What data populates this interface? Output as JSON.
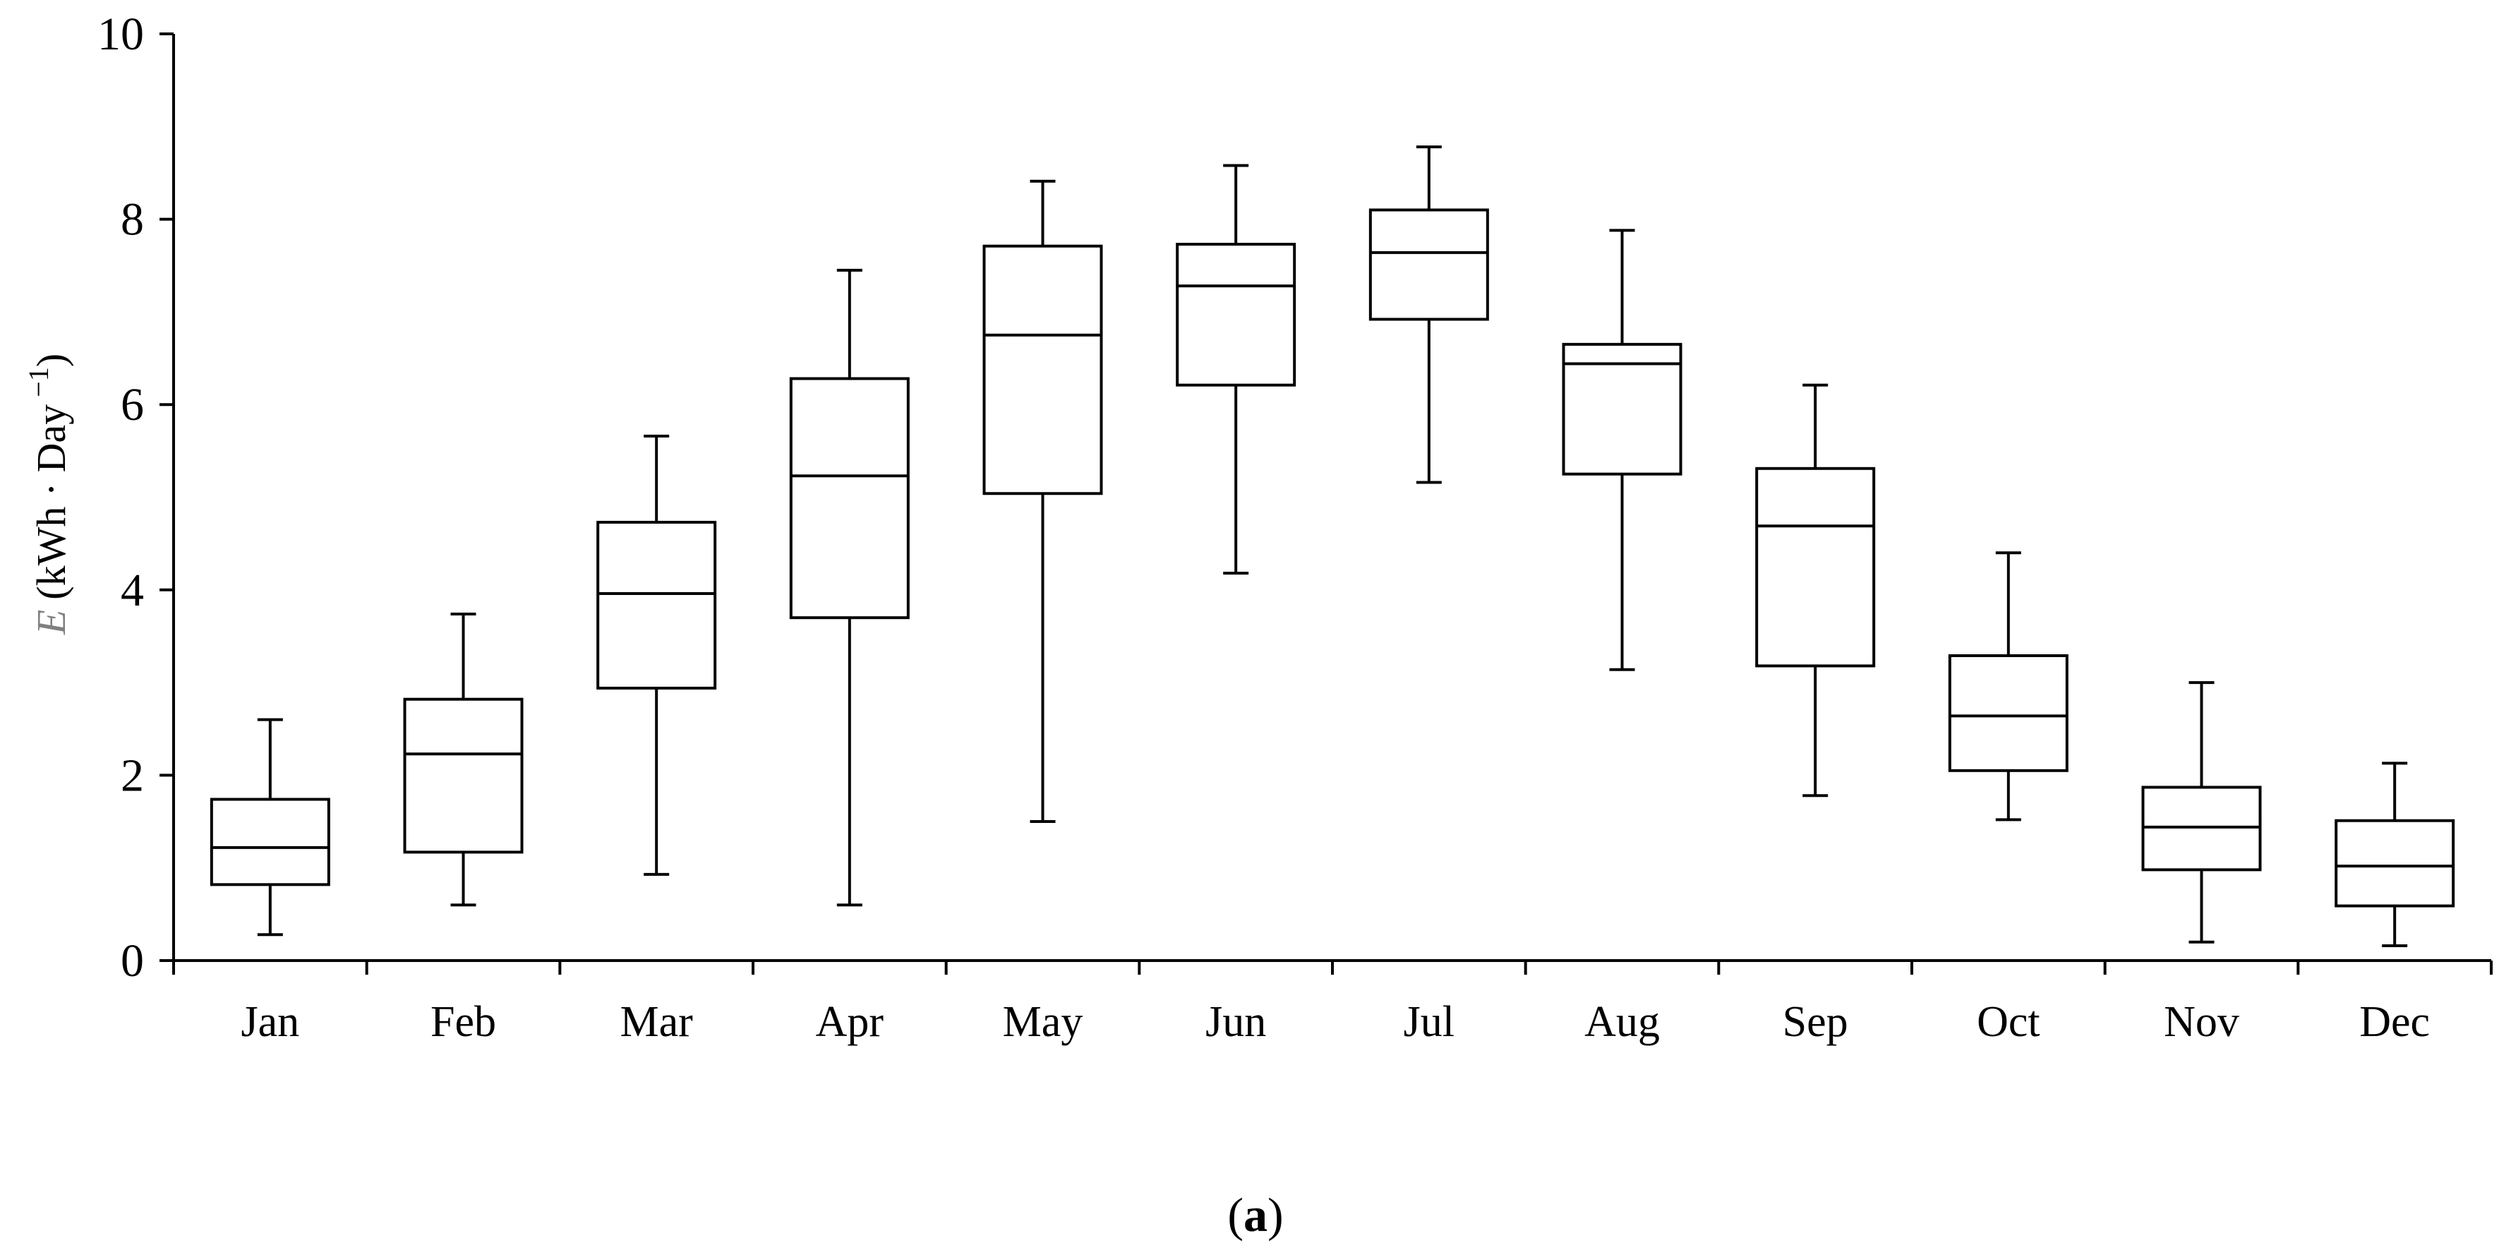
{
  "chart_data": {
    "type": "boxplot",
    "ylabel": {
      "var": "E",
      "units": "(kWh · Day",
      "exp": "−1",
      "close": ")"
    },
    "ylim": [
      0,
      10
    ],
    "yticks": [
      0,
      2,
      4,
      6,
      8,
      10
    ],
    "grid": false,
    "categories": [
      "Jan",
      "Feb",
      "Mar",
      "Apr",
      "May",
      "Jun",
      "Jul",
      "Aug",
      "Sep",
      "Oct",
      "Nov",
      "Dec"
    ],
    "boxes": [
      {
        "min": 0.28,
        "q1": 0.82,
        "median": 1.22,
        "q3": 1.74,
        "max": 2.6
      },
      {
        "min": 0.6,
        "q1": 1.17,
        "median": 2.23,
        "q3": 2.82,
        "max": 3.74
      },
      {
        "min": 0.93,
        "q1": 2.94,
        "median": 3.96,
        "q3": 4.73,
        "max": 5.66
      },
      {
        "min": 0.6,
        "q1": 3.7,
        "median": 5.23,
        "q3": 6.28,
        "max": 7.45
      },
      {
        "min": 1.5,
        "q1": 5.04,
        "median": 6.75,
        "q3": 7.71,
        "max": 8.41
      },
      {
        "min": 4.18,
        "q1": 6.21,
        "median": 7.28,
        "q3": 7.73,
        "max": 8.58
      },
      {
        "min": 5.16,
        "q1": 6.92,
        "median": 7.64,
        "q3": 8.1,
        "max": 8.78
      },
      {
        "min": 3.14,
        "q1": 5.25,
        "median": 6.44,
        "q3": 6.65,
        "max": 7.88
      },
      {
        "min": 1.78,
        "q1": 3.18,
        "median": 4.69,
        "q3": 5.31,
        "max": 6.21
      },
      {
        "min": 1.52,
        "q1": 2.05,
        "median": 2.64,
        "q3": 3.29,
        "max": 4.4
      },
      {
        "min": 0.2,
        "q1": 0.98,
        "median": 1.44,
        "q3": 1.87,
        "max": 3.0
      },
      {
        "min": 0.16,
        "q1": 0.59,
        "median": 1.02,
        "q3": 1.51,
        "max": 2.13
      }
    ]
  },
  "caption": {
    "open": "(",
    "letter": "a",
    "close": ")"
  }
}
